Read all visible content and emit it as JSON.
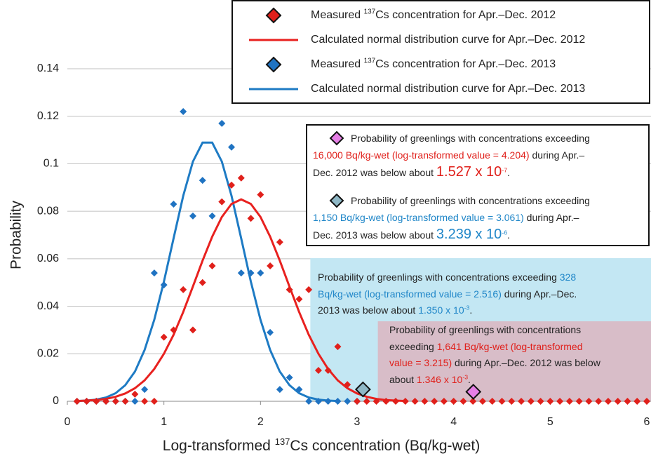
{
  "chart_data": {
    "type": "scatter-line",
    "xlabel": [
      {
        "text": "Log-transformed "
      },
      {
        "text": "137",
        "style": "sup"
      },
      {
        "text": "Cs concentration (Bq/kg-wet)"
      }
    ],
    "ylabel": "Probability",
    "xlim": [
      0,
      6
    ],
    "ylim": [
      0,
      0.14
    ],
    "xticks": [
      0,
      1,
      2,
      3,
      4,
      5,
      6
    ],
    "yticks": [
      0,
      0.02,
      0.04,
      0.06,
      0.08,
      0.1,
      0.12,
      0.14
    ],
    "grid": true,
    "series": [
      {
        "name": [
          {
            "text": "Measured "
          },
          {
            "text": "137",
            "style": "sup"
          },
          {
            "text": "Cs concentration for Apr.–Dec. 2012"
          }
        ],
        "kind": "marker",
        "color": "#e0201b",
        "x": [
          0.1,
          0.2,
          0.3,
          0.4,
          0.5,
          0.6,
          0.7,
          0.8,
          0.9,
          1.0,
          1.1,
          1.2,
          1.3,
          1.4,
          1.5,
          1.6,
          1.7,
          1.8,
          1.9,
          2.0,
          2.1,
          2.2,
          2.3,
          2.4,
          2.5,
          2.6,
          2.7,
          2.8,
          2.9,
          3.0,
          3.1,
          3.2,
          3.3,
          3.4,
          3.5,
          3.6,
          3.7,
          3.8,
          3.9,
          4.0,
          4.1,
          4.2,
          4.3,
          4.4,
          4.5,
          4.6,
          4.7,
          4.8,
          4.9,
          5.0,
          5.1,
          5.2,
          5.3,
          5.4,
          5.5,
          5.6,
          5.7,
          5.8,
          5.9,
          6.0
        ],
        "values": [
          0,
          0,
          0,
          0,
          0,
          0,
          0.003,
          0,
          0,
          0.027,
          0.03,
          0.047,
          0.03,
          0.05,
          0.057,
          0.084,
          0.091,
          0.094,
          0.077,
          0.087,
          0.057,
          0.067,
          0.047,
          0.043,
          0.047,
          0.013,
          0.013,
          0.023,
          0.007,
          0,
          0,
          0,
          0,
          0,
          0,
          0,
          0,
          0,
          0,
          0,
          0,
          0,
          0,
          0,
          0,
          0,
          0,
          0,
          0,
          0,
          0,
          0,
          0,
          0,
          0,
          0,
          0,
          0,
          0,
          0
        ]
      },
      {
        "name": [
          {
            "text": "Calculated normal distribution curve for Apr.–Dec. 2012"
          }
        ],
        "kind": "line",
        "color": "#e8211f",
        "x": [
          0.1,
          0.2,
          0.3,
          0.4,
          0.5,
          0.6,
          0.7,
          0.8,
          0.9,
          1.0,
          1.1,
          1.2,
          1.3,
          1.4,
          1.5,
          1.6,
          1.7,
          1.8,
          1.9,
          2.0,
          2.1,
          2.2,
          2.3,
          2.4,
          2.5,
          2.6,
          2.7,
          2.8,
          2.9,
          3.0,
          3.1,
          3.2,
          3.3,
          3.4,
          3.5
        ],
        "values": [
          0.0001,
          0.0003,
          0.0005,
          0.001,
          0.0019,
          0.0033,
          0.0055,
          0.0088,
          0.0136,
          0.02,
          0.028,
          0.0376,
          0.0483,
          0.0592,
          0.0693,
          0.0776,
          0.0831,
          0.085,
          0.0831,
          0.0776,
          0.0693,
          0.0592,
          0.0483,
          0.0376,
          0.028,
          0.02,
          0.0136,
          0.0088,
          0.0055,
          0.0033,
          0.0019,
          0.001,
          0.0005,
          0.0003,
          0.0001
        ]
      },
      {
        "name": [
          {
            "text": "Measured "
          },
          {
            "text": "137",
            "style": "sup"
          },
          {
            "text": "Cs concentration for Apr.–Dec. 2013"
          }
        ],
        "kind": "marker",
        "color": "#1f73c2",
        "x": [
          0.1,
          0.2,
          0.3,
          0.4,
          0.5,
          0.6,
          0.7,
          0.8,
          0.9,
          1.0,
          1.1,
          1.2,
          1.3,
          1.4,
          1.5,
          1.6,
          1.7,
          1.8,
          1.9,
          2.0,
          2.1,
          2.2,
          2.3,
          2.4,
          2.5,
          2.6,
          2.7,
          2.8,
          2.9,
          3.0
        ],
        "values": [
          0,
          0,
          0,
          0,
          0,
          0,
          0,
          0.005,
          0.054,
          0.049,
          0.083,
          0.122,
          0.078,
          0.093,
          0.078,
          0.117,
          0.107,
          0.054,
          0.054,
          0.054,
          0.029,
          0.005,
          0.01,
          0.005,
          0,
          0,
          0,
          0,
          0,
          0
        ]
      },
      {
        "name": [
          {
            "text": "Calculated normal distribution curve for Apr.–Dec. 2013"
          }
        ],
        "kind": "line",
        "color": "#1e7bc4",
        "x": [
          0.1,
          0.2,
          0.3,
          0.4,
          0.5,
          0.6,
          0.7,
          0.8,
          0.9,
          1.0,
          1.1,
          1.2,
          1.3,
          1.4,
          1.5,
          1.6,
          1.7,
          1.8,
          1.9,
          2.0,
          2.1,
          2.2,
          2.3,
          2.4,
          2.5,
          2.6,
          2.7,
          2.8
        ],
        "values": [
          0.0001,
          0.0003,
          0.0007,
          0.0016,
          0.0034,
          0.0068,
          0.0125,
          0.0216,
          0.0343,
          0.0504,
          0.0686,
          0.0865,
          0.1009,
          0.1089,
          0.1089,
          0.1009,
          0.0865,
          0.0686,
          0.0504,
          0.0343,
          0.0216,
          0.0125,
          0.0068,
          0.0034,
          0.0016,
          0.0007,
          0.0003,
          0.0001
        ]
      }
    ],
    "markers": [
      {
        "x": 4.204,
        "y": 0.004,
        "color": "#e67fe6"
      },
      {
        "x": 3.061,
        "y": 0.005,
        "color": "#8fb8c6"
      }
    ],
    "regions": [
      {
        "x_from": 2.516,
        "color": "#c3e7f3",
        "lines": [
          [
            {
              "text": "Probability of greenlings with concentrations exceeding "
            },
            {
              "text": "328",
              "style": "blue"
            }
          ],
          [
            {
              "text": "Bq/kg-wet (log-transformed value = 2.516)",
              "style": "blue"
            },
            {
              "text": " during Apr.–Dec."
            }
          ],
          [
            {
              "text": "2013 was below about "
            },
            {
              "text": "1.350 x 10",
              "style": "blue"
            },
            {
              "text": "-3",
              "style": "blue sup"
            },
            {
              "text": "."
            }
          ]
        ]
      },
      {
        "x_from": 3.215,
        "color": "#d8bdc8",
        "lines": [
          [
            {
              "text": "Probability of greenlings with concentrations"
            }
          ],
          [
            {
              "text": "exceeding "
            },
            {
              "text": "1,641 Bq/kg-wet (log-transformed",
              "style": "red"
            }
          ],
          [
            {
              "text": "value = 3.215)",
              "style": "red"
            },
            {
              "text": " during Apr.–Dec. 2012 was below"
            }
          ],
          [
            {
              "text": "about "
            },
            {
              "text": "1.346 x 10",
              "style": "red"
            },
            {
              "text": "-3",
              "style": "red sup"
            },
            {
              "text": "."
            }
          ]
        ]
      }
    ],
    "notes": [
      {
        "lines": [
          [
            {
              "text": "Probability of greenlings with concentrations exceeding"
            }
          ],
          [
            {
              "text": "16,000 Bq/kg-wet (log-transformed value =  4.204)",
              "style": "red"
            },
            {
              "text": " during Apr.–"
            }
          ],
          [
            {
              "text": "Dec. 2012 was below about  "
            },
            {
              "text": "1.527 x 10",
              "style": "red big"
            },
            {
              "text": "-7",
              "style": "red big sup"
            },
            {
              "text": "."
            }
          ]
        ]
      },
      {
        "lines": [
          [
            {
              "text": "Probability of greenlings with concentrations exceeding"
            }
          ],
          [
            {
              "text": "1,150 Bq/kg-wet (log-transformed value = 3.061)",
              "style": "blue"
            },
            {
              "text": " during Apr.–"
            }
          ],
          [
            {
              "text": "Dec. 2013 was below about  "
            },
            {
              "text": "3.239 x 10",
              "style": "blue big"
            },
            {
              "text": "-6",
              "style": "blue big sup"
            },
            {
              "text": "."
            }
          ]
        ]
      }
    ]
  }
}
